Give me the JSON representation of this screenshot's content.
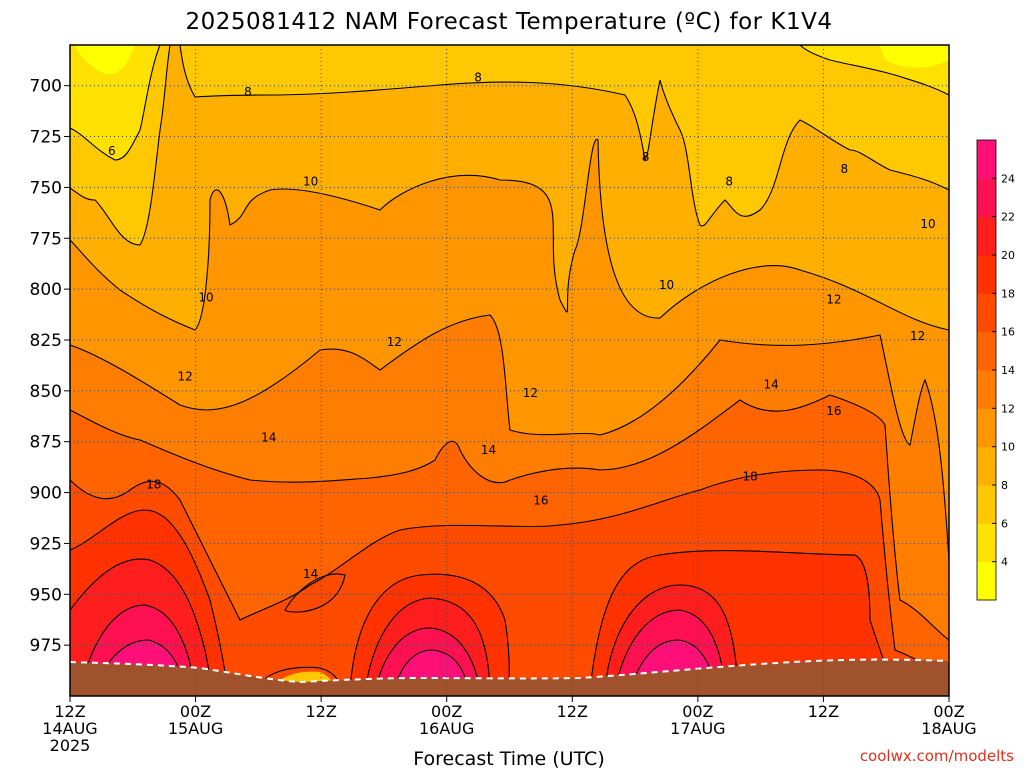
{
  "chart_data": {
    "type": "heatmap",
    "title": "2025081412 NAM Forecast Temperature (ºC) for K1V4",
    "xlabel": "Forecast Time (UTC)",
    "credit": "coolwx.com/modelts",
    "y_axis": {
      "label": "",
      "inverted": true,
      "ylim": [
        1000,
        680
      ],
      "ticks": [
        700,
        725,
        750,
        775,
        800,
        825,
        850,
        875,
        900,
        925,
        950,
        975
      ]
    },
    "x_axis": {
      "xlim": [
        0,
        84
      ],
      "ticks": [
        {
          "hour": 0,
          "lines": [
            "12Z",
            "14AUG",
            "2025"
          ]
        },
        {
          "hour": 12,
          "lines": [
            "00Z",
            "15AUG"
          ]
        },
        {
          "hour": 24,
          "lines": [
            "12Z"
          ]
        },
        {
          "hour": 36,
          "lines": [
            "00Z",
            "16AUG"
          ]
        },
        {
          "hour": 48,
          "lines": [
            "12Z"
          ]
        },
        {
          "hour": 60,
          "lines": [
            "00Z",
            "17AUG"
          ]
        },
        {
          "hour": 72,
          "lines": [
            "12Z"
          ]
        },
        {
          "hour": 84,
          "lines": [
            "00Z",
            "18AUG"
          ]
        }
      ]
    },
    "grid": true,
    "colorbar": {
      "levels": [
        2,
        4,
        6,
        8,
        10,
        12,
        14,
        16,
        18,
        20,
        22,
        24,
        26
      ],
      "labels": [
        "4",
        "6",
        "8",
        "10",
        "12",
        "14",
        "16",
        "18",
        "20",
        "22",
        "24"
      ],
      "colors": [
        "#ffff00",
        "#ffe100",
        "#ffc800",
        "#ffaf00",
        "#ff9600",
        "#ff7d00",
        "#ff6400",
        "#ff4b00",
        "#ff3200",
        "#ff1e1e",
        "#ff1050",
        "#ff1078"
      ]
    },
    "ground_color": "#a0522d",
    "contour_labels": [
      {
        "hour": 4,
        "p": 732,
        "text": "6"
      },
      {
        "hour": 17,
        "p": 703,
        "text": "8"
      },
      {
        "hour": 39,
        "p": 696,
        "text": "8"
      },
      {
        "hour": 55,
        "p": 735,
        "text": "8"
      },
      {
        "hour": 63,
        "p": 747,
        "text": "8"
      },
      {
        "hour": 74,
        "p": 741,
        "text": "8"
      },
      {
        "hour": 23,
        "p": 747,
        "text": "10"
      },
      {
        "hour": 13,
        "p": 804,
        "text": "10"
      },
      {
        "hour": 57,
        "p": 798,
        "text": "10"
      },
      {
        "hour": 82,
        "p": 768,
        "text": "10"
      },
      {
        "hour": 31,
        "p": 826,
        "text": "12"
      },
      {
        "hour": 11,
        "p": 843,
        "text": "12"
      },
      {
        "hour": 44,
        "p": 851,
        "text": "12"
      },
      {
        "hour": 73,
        "p": 805,
        "text": "12"
      },
      {
        "hour": 81,
        "p": 823,
        "text": "12"
      },
      {
        "hour": 19,
        "p": 873,
        "text": "14"
      },
      {
        "hour": 40,
        "p": 879,
        "text": "14"
      },
      {
        "hour": 67,
        "p": 847,
        "text": "14"
      },
      {
        "hour": 23,
        "p": 940,
        "text": "14"
      },
      {
        "hour": 45,
        "p": 904,
        "text": "16"
      },
      {
        "hour": 73,
        "p": 860,
        "text": "16"
      },
      {
        "hour": 8,
        "p": 896,
        "text": "18"
      },
      {
        "hour": 65,
        "p": 892,
        "text": "18"
      }
    ]
  }
}
